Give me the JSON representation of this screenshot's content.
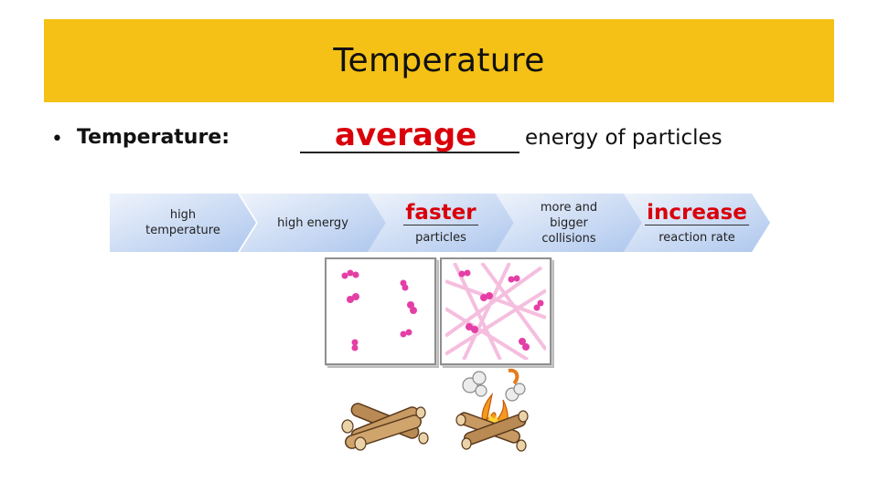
{
  "title": "Temperature",
  "bullet": {
    "marker": "•",
    "label": "Temperature:",
    "answer": "average",
    "tail": "energy of particles"
  },
  "flow": [
    {
      "label_line1": "high",
      "label_line2": "temperature"
    },
    {
      "label": "high energy"
    },
    {
      "answer": "faster",
      "sub": "particles"
    },
    {
      "label_line1": "more and",
      "label_line2": "bigger",
      "label_line3": "collisions"
    },
    {
      "answer": "increase",
      "sub": "reaction rate"
    }
  ],
  "colors": {
    "title_bar": "#f5c116",
    "answer_red": "#d9000a",
    "chevron_light": "#dde8f8",
    "chevron_dark": "#b3cbef",
    "particle": "#e43fa6",
    "trail": "#f4b3d9"
  },
  "illustrations": {
    "cold_panel": "slow-particles-diagram",
    "hot_panel": "fast-particles-diagram",
    "cold_logs": "unlit-logs-icon",
    "hot_logs": "campfire-icon"
  }
}
